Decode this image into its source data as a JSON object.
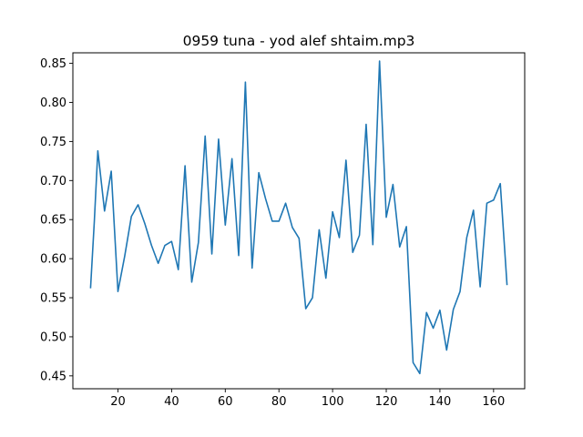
{
  "chart_data": {
    "type": "line",
    "title": "0959 tuna - yod alef shtaim.mp3",
    "xlabel": "",
    "ylabel": "",
    "xlim": [
      3.2,
      171.6
    ],
    "ylim": [
      0.4335,
      0.8635
    ],
    "grid": false,
    "x_ticks": [
      20,
      40,
      60,
      80,
      100,
      120,
      140,
      160
    ],
    "y_ticks": [
      0.45,
      0.5,
      0.55,
      0.6,
      0.65,
      0.7,
      0.75,
      0.8,
      0.85
    ],
    "x_tick_labels": [
      "20",
      "40",
      "60",
      "80",
      "100",
      "120",
      "140",
      "160"
    ],
    "y_tick_labels": [
      "0.45",
      "0.50",
      "0.55",
      "0.60",
      "0.65",
      "0.70",
      "0.75",
      "0.80",
      "0.85"
    ],
    "series": [
      {
        "color": "#1f77b4",
        "x": [
          9.8,
          11.2,
          12.5,
          15.0,
          17.5,
          20.0,
          22.5,
          25.0,
          27.5,
          30.0,
          32.5,
          35.0,
          37.5,
          40.0,
          42.5,
          45.0,
          47.5,
          50.0,
          52.5,
          55.0,
          57.5,
          60.0,
          62.5,
          65.0,
          67.5,
          70.0,
          72.5,
          75.0,
          77.5,
          80.0,
          82.5,
          85.0,
          87.5,
          90.0,
          92.5,
          95.0,
          97.5,
          100.0,
          102.5,
          105.0,
          107.5,
          110.0,
          112.5,
          115.0,
          117.5,
          120.0,
          122.5,
          125.0,
          127.5,
          130.0,
          132.5,
          135.0,
          137.5,
          140.0,
          142.5,
          145.0,
          147.5,
          150.0,
          152.5,
          155.0,
          157.5,
          160.0,
          162.5,
          165.0
        ],
        "y": [
          0.563,
          0.648,
          0.738,
          0.661,
          0.712,
          0.558,
          0.603,
          0.654,
          0.669,
          0.645,
          0.617,
          0.594,
          0.617,
          0.622,
          0.586,
          0.719,
          0.57,
          0.621,
          0.757,
          0.606,
          0.753,
          0.643,
          0.728,
          0.604,
          0.826,
          0.588,
          0.71,
          0.677,
          0.648,
          0.648,
          0.671,
          0.64,
          0.626,
          0.536,
          0.55,
          0.637,
          0.575,
          0.66,
          0.627,
          0.726,
          0.608,
          0.63,
          0.772,
          0.618,
          0.853,
          0.653,
          0.695,
          0.615,
          0.641,
          0.467,
          0.453,
          0.531,
          0.511,
          0.534,
          0.483,
          0.535,
          0.558,
          0.627,
          0.662,
          0.564,
          0.671,
          0.675,
          0.696,
          0.567
        ]
      }
    ]
  }
}
